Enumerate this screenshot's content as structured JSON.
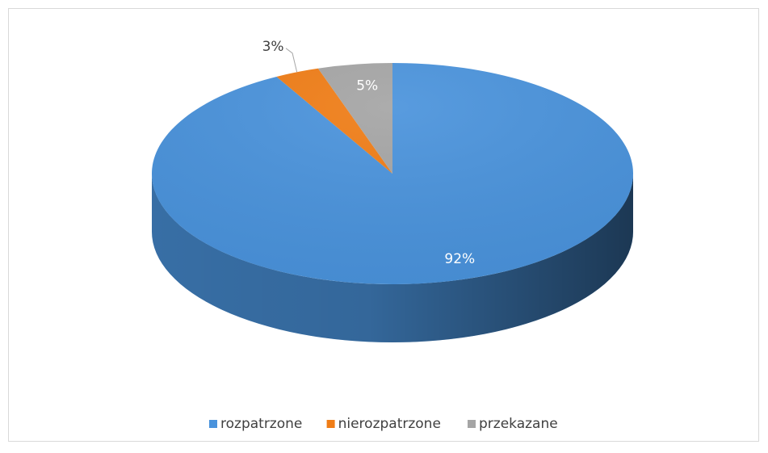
{
  "chart_data": {
    "type": "pie",
    "categories": [
      "rozpatrzone",
      "nierozpatrzone",
      "przekazane"
    ],
    "values": [
      92,
      3,
      5
    ],
    "value_labels": [
      "92%",
      "3%",
      "5%"
    ],
    "colors": [
      "#4a93dc",
      "#f07d16",
      "#a5a5a5"
    ],
    "legend": "bottom"
  }
}
